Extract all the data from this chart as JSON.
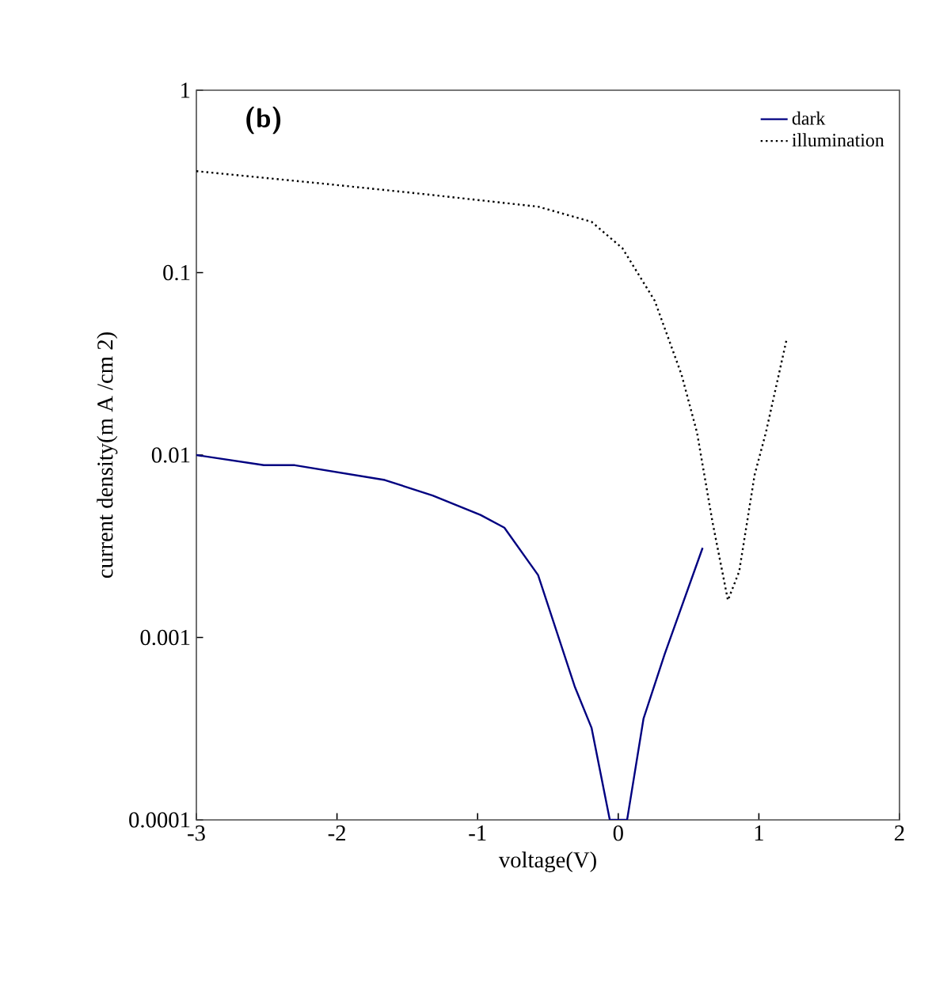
{
  "chart_data": {
    "type": "line",
    "xlabel": "voltage(V)",
    "ylabel": "current density(m A /cm 2)",
    "log": "y",
    "xlim": [
      -3,
      2
    ],
    "ylim": [
      0.0001,
      1
    ],
    "xticks": [
      -3,
      -2,
      -1,
      0,
      1,
      2
    ],
    "yticks": [
      0.0001,
      0.001,
      0.01,
      0.1,
      1
    ],
    "legend": "top right",
    "grid": false,
    "marker": "none",
    "annotations": [
      "(b)"
    ],
    "series": [
      {
        "name": "dark",
        "color": "#000080",
        "line_style": "solid",
        "x": [
          -3,
          -2.52,
          -2.3,
          -1.66,
          -1.32,
          -0.98,
          -0.81,
          -0.57,
          -0.31,
          -0.19,
          -0.06,
          0.063,
          0.18,
          0.33,
          0.6
        ],
        "values": [
          0.01,
          0.0088,
          0.0088,
          0.0073,
          0.006,
          0.0047,
          0.004,
          0.0022,
          0.00054,
          0.00032,
          0.0001,
          0.0001,
          0.00036,
          0.00081,
          0.0031
        ]
      },
      {
        "name": "illumination",
        "color": "#000000",
        "line_style": "dotted",
        "x": [
          -3,
          -2.14,
          -1.39,
          -0.57,
          -0.19,
          0.03,
          0.26,
          0.45,
          0.56,
          0.67,
          0.78,
          0.86,
          0.97,
          1.05,
          1.2
        ],
        "values": [
          0.36,
          0.31,
          0.27,
          0.23,
          0.19,
          0.136,
          0.07,
          0.0276,
          0.0133,
          0.0043,
          0.0016,
          0.0023,
          0.0078,
          0.0133,
          0.044
        ]
      }
    ]
  }
}
